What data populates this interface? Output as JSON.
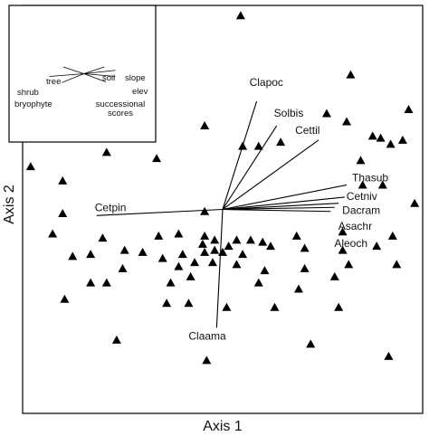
{
  "chart_data": {
    "type": "scatter",
    "title": "",
    "xlabel": "Axis 1",
    "ylabel": "Axis 2",
    "xlim": [
      -1.0,
      1.0
    ],
    "ylim": [
      -1.0,
      1.0
    ],
    "grid": false,
    "marker": "filled-triangle",
    "point_color": "#000000",
    "origin": [
      0.0,
      0.0
    ],
    "points": [
      [
        0.09,
        0.95
      ],
      [
        0.64,
        0.66
      ],
      [
        0.93,
        0.49
      ],
      [
        -0.37,
        0.46
      ],
      [
        -0.09,
        0.41
      ],
      [
        0.52,
        0.47
      ],
      [
        0.62,
        0.43
      ],
      [
        0.75,
        0.36
      ],
      [
        0.79,
        0.35
      ],
      [
        0.84,
        0.32
      ],
      [
        0.9,
        0.34
      ],
      [
        0.1,
        0.31
      ],
      [
        0.18,
        0.31
      ],
      [
        0.29,
        0.33
      ],
      [
        -0.58,
        0.28
      ],
      [
        -0.33,
        0.25
      ],
      [
        -0.96,
        0.21
      ],
      [
        0.69,
        0.24
      ],
      [
        0.7,
        0.12
      ],
      [
        0.8,
        0.12
      ],
      [
        0.96,
        0.03
      ],
      [
        -0.8,
        0.14
      ],
      [
        -0.09,
        -0.01
      ],
      [
        -0.8,
        -0.02
      ],
      [
        -0.1,
        -0.17
      ],
      [
        -0.85,
        -0.12
      ],
      [
        -0.6,
        -0.14
      ],
      [
        -0.49,
        -0.2
      ],
      [
        -0.32,
        -0.13
      ],
      [
        -0.22,
        -0.12
      ],
      [
        -0.09,
        -0.13
      ],
      [
        -0.04,
        -0.15
      ],
      [
        0.07,
        -0.15
      ],
      [
        0.14,
        -0.15
      ],
      [
        0.2,
        -0.16
      ],
      [
        0.37,
        -0.13
      ],
      [
        0.6,
        -0.11
      ],
      [
        0.85,
        -0.13
      ],
      [
        -0.66,
        -0.22
      ],
      [
        -0.4,
        -0.21
      ],
      [
        -0.3,
        -0.24
      ],
      [
        -0.2,
        -0.22
      ],
      [
        -0.09,
        -0.21
      ],
      [
        -0.04,
        -0.2
      ],
      [
        0.0,
        -0.21
      ],
      [
        0.03,
        -0.18
      ],
      [
        0.1,
        -0.22
      ],
      [
        0.24,
        -0.18
      ],
      [
        0.41,
        -0.19
      ],
      [
        0.6,
        -0.2
      ],
      [
        0.77,
        -0.18
      ],
      [
        -0.75,
        -0.23
      ],
      [
        -0.5,
        -0.29
      ],
      [
        -0.22,
        -0.28
      ],
      [
        -0.14,
        -0.26
      ],
      [
        -0.05,
        -0.26
      ],
      [
        0.07,
        -0.27
      ],
      [
        0.21,
        -0.3
      ],
      [
        0.41,
        -0.29
      ],
      [
        0.63,
        -0.27
      ],
      [
        0.87,
        -0.27
      ],
      [
        -0.66,
        -0.36
      ],
      [
        -0.58,
        -0.36
      ],
      [
        -0.26,
        -0.36
      ],
      [
        -0.16,
        -0.33
      ],
      [
        0.18,
        -0.36
      ],
      [
        0.38,
        -0.39
      ],
      [
        0.56,
        -0.33
      ],
      [
        -0.79,
        -0.44
      ],
      [
        -0.28,
        -0.46
      ],
      [
        -0.17,
        -0.46
      ],
      [
        0.02,
        -0.48
      ],
      [
        0.26,
        -0.48
      ],
      [
        0.58,
        -0.48
      ],
      [
        -0.53,
        -0.64
      ],
      [
        0.44,
        -0.66
      ],
      [
        -0.08,
        -0.74
      ],
      [
        0.83,
        -0.72
      ]
    ],
    "vectors": [
      {
        "label": "Clapoc",
        "end": [
          0.17,
          0.53
        ]
      },
      {
        "label": "Solbis",
        "end": [
          0.27,
          0.41
        ]
      },
      {
        "label": "Cettil",
        "end": [
          0.48,
          0.34
        ]
      },
      {
        "label": "Thasub",
        "end": [
          0.62,
          0.12
        ]
      },
      {
        "label": "Cetniv",
        "end": [
          0.61,
          0.06
        ]
      },
      {
        "label": "Dacram",
        "end": [
          0.58,
          0.03
        ]
      },
      {
        "label": "Asachr",
        "end": [
          0.56,
          0.01
        ]
      },
      {
        "label": "Aleoch",
        "end": [
          0.54,
          -0.01
        ]
      },
      {
        "label": "Cetpin",
        "end": [
          -0.63,
          -0.03
        ]
      },
      {
        "label": "Claama",
        "end": [
          -0.03,
          -0.58
        ]
      }
    ],
    "inset": {
      "xlim": [
        -1.0,
        1.0
      ],
      "ylim": [
        -1.0,
        1.0
      ],
      "vectors": [
        {
          "label": "tree",
          "end": [
            -0.26,
            0.1
          ]
        },
        {
          "label": "shrub",
          "end": [
            -0.45,
            -0.04
          ]
        },
        {
          "label": "bryophyte",
          "end": [
            -0.28,
            -0.13
          ]
        },
        {
          "label": "soil",
          "end": [
            0.3,
            0.1
          ]
        },
        {
          "label": "slope",
          "end": [
            0.45,
            0.05
          ]
        },
        {
          "label": "elev",
          "end": [
            0.45,
            -0.04
          ]
        },
        {
          "label": "successional scores",
          "end": [
            0.32,
            -0.12
          ]
        }
      ]
    }
  }
}
